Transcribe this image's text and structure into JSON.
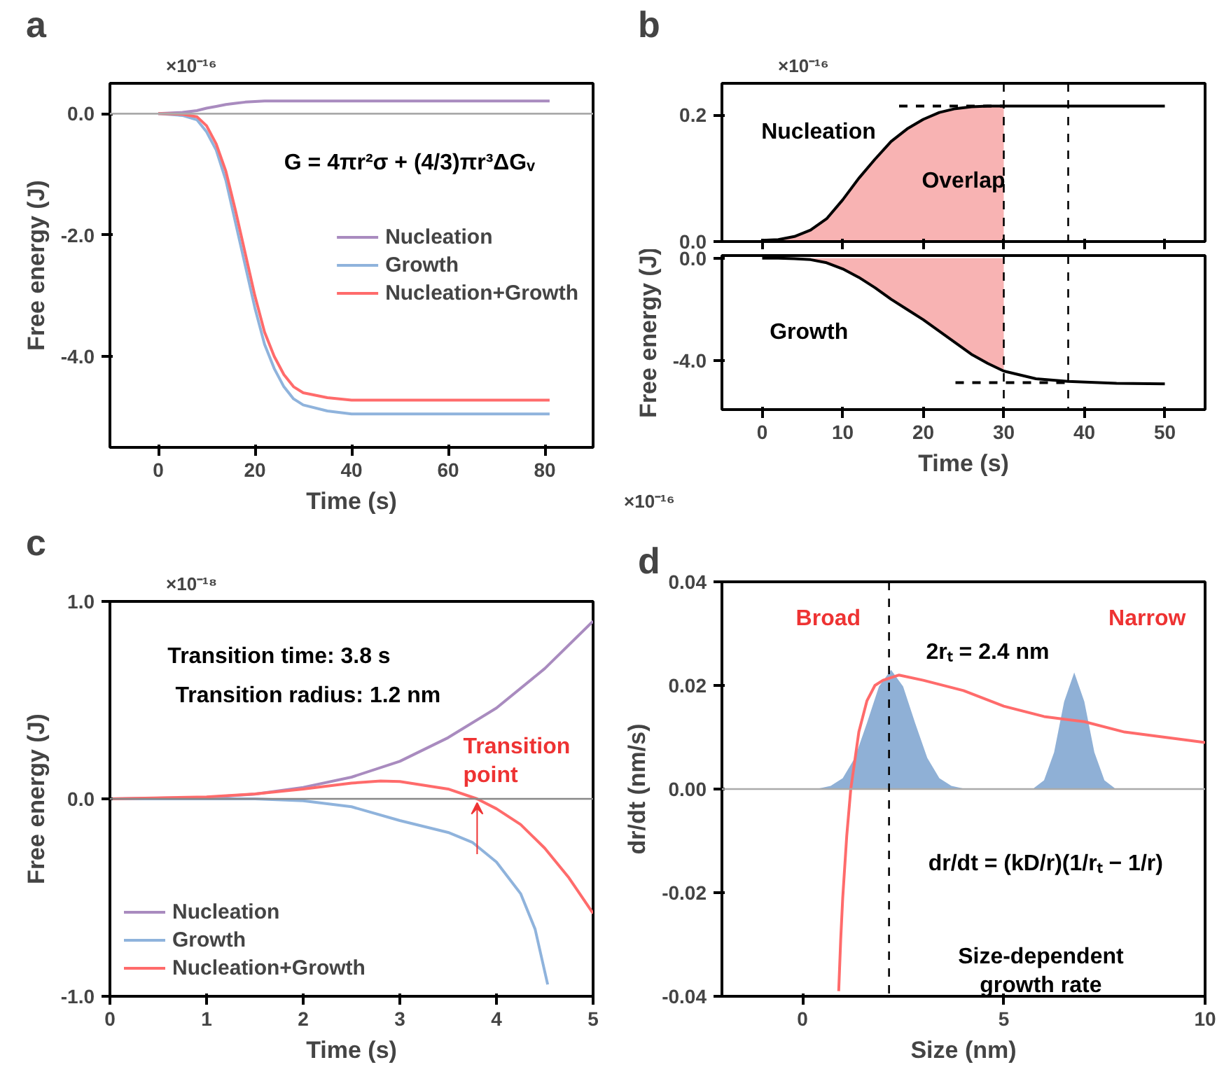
{
  "chart_data": [
    {
      "type": "line",
      "title": "a",
      "subtitle": "×10⁻¹⁶",
      "xlabel": "Time (s)",
      "ylabel": "Free energy (J)",
      "xlim": [
        -10,
        90
      ],
      "ylim": [
        -5.5,
        0.5
      ],
      "xticks": [
        0,
        20,
        40,
        60,
        80
      ],
      "yticks": [
        {
          "value": 0,
          "label": "0.0"
        },
        {
          "value": -2,
          "label": "-2.0"
        },
        {
          "value": -4,
          "label": "-4.0"
        }
      ],
      "legend": "right",
      "grid": false,
      "x": [
        0,
        5,
        8,
        10,
        12,
        14,
        16,
        18,
        20,
        22,
        24,
        26,
        28,
        30,
        35,
        40,
        50,
        81
      ],
      "series": [
        {
          "name": "Nucleation",
          "color": "#a98bbf",
          "values": [
            0,
            0.02,
            0.05,
            0.09,
            0.12,
            0.15,
            0.17,
            0.19,
            0.2,
            0.21,
            0.21,
            0.21,
            0.21,
            0.21,
            0.21,
            0.21,
            0.21,
            0.21
          ]
        },
        {
          "name": "Growth",
          "color": "#8fb3dc",
          "values": [
            0,
            -0.03,
            -0.1,
            -0.3,
            -0.6,
            -1.1,
            -1.8,
            -2.5,
            -3.2,
            -3.8,
            -4.2,
            -4.5,
            -4.7,
            -4.8,
            -4.9,
            -4.95,
            -4.95,
            -4.95
          ]
        },
        {
          "name": "Nucleation+Growth",
          "color": "#ff6b6b",
          "values": [
            0,
            -0.01,
            -0.05,
            -0.2,
            -0.5,
            -0.95,
            -1.6,
            -2.3,
            -3.0,
            -3.6,
            -4.0,
            -4.3,
            -4.5,
            -4.6,
            -4.68,
            -4.72,
            -4.72,
            -4.72
          ]
        }
      ],
      "ref_lines": [
        {
          "axis": "y",
          "value": 0,
          "color": "#aaaaaa"
        }
      ],
      "annotations": [
        "G = 4πr²σ + (4/3)πr³ΔGᵥ"
      ]
    },
    {
      "type": "line",
      "title": "b",
      "subtitle": "×10⁻¹⁶",
      "xlim": [
        -5,
        55
      ],
      "ylim": [
        0,
        0.25
      ],
      "xticks": [
        0,
        10,
        20,
        30,
        40,
        50
      ],
      "yticks": [
        {
          "value": 0,
          "label": "0.0"
        },
        0.2
      ],
      "tick_labels": "y",
      "grid": false,
      "series": [
        {
          "type": "area",
          "color": "#f8b3b3",
          "x": [
            0,
            2,
            4,
            6,
            8,
            10,
            12,
            14,
            16,
            18,
            20,
            22,
            24,
            26,
            28,
            30
          ],
          "values": [
            0.002,
            0.003,
            0.008,
            0.018,
            0.036,
            0.066,
            0.1,
            0.13,
            0.158,
            0.178,
            0.193,
            0.204,
            0.21,
            0.213,
            0.214,
            0.214
          ]
        },
        {
          "color": "#000000",
          "x": [
            0,
            2,
            4,
            6,
            8,
            10,
            12,
            14,
            16,
            18,
            20,
            22,
            24,
            26,
            28,
            30,
            40,
            50
          ],
          "values": [
            0.002,
            0.003,
            0.008,
            0.018,
            0.036,
            0.066,
            0.1,
            0.13,
            0.158,
            0.178,
            0.193,
            0.204,
            0.21,
            0.213,
            0.214,
            0.214,
            0.214,
            0.214
          ]
        },
        {
          "color": "#000000",
          "line_style": "dashed",
          "x": [
            17,
            30
          ],
          "values": [
            0.214,
            0.214
          ]
        }
      ],
      "ref_lines": [
        {
          "axis": "x",
          "value": 30,
          "color": "#000000",
          "line_style": "dashed"
        },
        {
          "axis": "x",
          "value": 38,
          "color": "#000000",
          "line_style": "dashed"
        }
      ],
      "annotations": [
        "Nucleation",
        "Overlap"
      ]
    },
    {
      "type": "line",
      "subtitle": "×10⁻¹⁶",
      "xlabel": "Time (s)",
      "ylabel": "Free energy (J)",
      "xlim": [
        -5,
        55
      ],
      "ylim": [
        -5.9,
        0.1
      ],
      "xticks": [
        0,
        10,
        20,
        30,
        40,
        50
      ],
      "yticks": [
        {
          "value": 0,
          "label": "0.0"
        },
        {
          "value": -4,
          "label": "-4.0"
        }
      ],
      "grid": false,
      "series": [
        {
          "type": "area",
          "color": "#f8b3b3",
          "x": [
            0,
            2,
            4,
            6,
            8,
            10,
            12,
            14,
            16,
            18,
            20,
            22,
            24,
            26,
            28,
            30
          ],
          "values": [
            0,
            0,
            -0.02,
            -0.06,
            -0.18,
            -0.42,
            -0.75,
            -1.15,
            -1.6,
            -2.0,
            -2.4,
            -2.85,
            -3.3,
            -3.75,
            -4.1,
            -4.4
          ]
        },
        {
          "color": "#000000",
          "x": [
            0,
            2,
            4,
            6,
            8,
            10,
            12,
            14,
            16,
            18,
            20,
            22,
            24,
            26,
            28,
            30,
            34,
            38,
            44,
            50
          ],
          "values": [
            0,
            0,
            -0.02,
            -0.06,
            -0.18,
            -0.42,
            -0.75,
            -1.15,
            -1.6,
            -2.0,
            -2.4,
            -2.85,
            -3.3,
            -3.75,
            -4.1,
            -4.4,
            -4.7,
            -4.8,
            -4.88,
            -4.9
          ]
        },
        {
          "color": "#000000",
          "line_style": "dashed",
          "x": [
            24,
            38
          ],
          "values": [
            -4.85,
            -4.85
          ]
        }
      ],
      "ref_lines": [
        {
          "axis": "x",
          "value": 30,
          "color": "#000000",
          "line_style": "dashed"
        },
        {
          "axis": "x",
          "value": 38,
          "color": "#000000",
          "line_style": "dashed"
        }
      ],
      "annotations": [
        "Growth"
      ]
    },
    {
      "type": "line",
      "title": "c",
      "subtitle": "×10⁻¹⁸",
      "xlabel": "Time (s)",
      "ylabel": "Free energy (J)",
      "xlim": [
        0,
        5
      ],
      "ylim": [
        -1,
        1
      ],
      "xticks": [
        0,
        1,
        2,
        3,
        4,
        5
      ],
      "yticks": [
        {
          "value": 1,
          "label": "1.0"
        },
        {
          "value": 0,
          "label": "0.0"
        },
        {
          "value": -1,
          "label": "-1.0"
        }
      ],
      "legend": "bottom left",
      "grid": false,
      "series": [
        {
          "name": "Nucleation",
          "color": "#a98bbf",
          "x": [
            0,
            1,
            1.5,
            2,
            2.5,
            3,
            3.5,
            4,
            4.5,
            5
          ],
          "values": [
            0,
            0.007,
            0.024,
            0.058,
            0.11,
            0.19,
            0.31,
            0.46,
            0.66,
            0.9
          ]
        },
        {
          "name": "Growth",
          "color": "#8fb3dc",
          "x": [
            0,
            1,
            1.5,
            2,
            2.5,
            3,
            3.5,
            3.75,
            4,
            4.25,
            4.4,
            4.53
          ],
          "values": [
            0,
            0,
            0,
            -0.01,
            -0.04,
            -0.11,
            -0.17,
            -0.22,
            -0.32,
            -0.48,
            -0.66,
            -0.94
          ]
        },
        {
          "name": "Nucleation+Growth",
          "color": "#ff6b6b",
          "x": [
            0,
            1,
            1.5,
            2,
            2.5,
            2.8,
            3,
            3.5,
            3.8,
            4,
            4.25,
            4.5,
            4.75,
            5
          ],
          "values": [
            0,
            0.01,
            0.025,
            0.05,
            0.08,
            0.09,
            0.088,
            0.05,
            0,
            -0.05,
            -0.13,
            -0.25,
            -0.4,
            -0.58
          ]
        }
      ],
      "ref_lines": [
        {
          "axis": "y",
          "value": 0,
          "color": "#888888"
        }
      ],
      "annotations": [
        "Transition time: 3.8 s",
        "Transition radius: 1.2 nm",
        {
          "text": "Transition\npoint",
          "x": 3.8,
          "y": 0
        }
      ]
    },
    {
      "type": "line",
      "title": "d",
      "xlabel": "Size (nm)",
      "ylabel": "dr/dt (nm/s)",
      "xlim": [
        -2,
        10
      ],
      "ylim": [
        -0.04,
        0.04
      ],
      "xticks": [
        0,
        5,
        10
      ],
      "yticks": [
        0.04,
        0.02,
        {
          "value": 0,
          "label": "0.00"
        },
        -0.02,
        -0.04
      ],
      "grid": false,
      "series": [
        {
          "type": "area",
          "color": "#8fb0d6",
          "x": [
            0.4,
            0.7,
            1.0,
            1.3,
            1.6,
            1.9,
            2.2,
            2.5,
            2.8,
            3.1,
            3.4,
            3.7,
            4.0
          ],
          "values": [
            0.0001,
            0.0006,
            0.0021,
            0.006,
            0.0127,
            0.0198,
            0.023,
            0.0198,
            0.0127,
            0.006,
            0.0021,
            0.0006,
            0.0001
          ]
        },
        {
          "type": "area",
          "color": "#8fb0d6",
          "x": [
            5.75,
            6.0,
            6.25,
            6.5,
            6.75,
            7.0,
            7.25,
            7.5,
            7.75
          ],
          "values": [
            0.0002,
            0.0017,
            0.0071,
            0.0169,
            0.0225,
            0.0169,
            0.0071,
            0.0017,
            0.0002
          ]
        },
        {
          "color": "#ff6b6b",
          "x": [
            0.9,
            0.95,
            1.0,
            1.1,
            1.2,
            1.4,
            1.6,
            1.8,
            2.0,
            2.4,
            3,
            4,
            5,
            6,
            7,
            8,
            9,
            10
          ],
          "values": [
            -0.039,
            -0.029,
            -0.021,
            -0.009,
            0,
            0.011,
            0.017,
            0.02,
            0.021,
            0.022,
            0.021,
            0.019,
            0.016,
            0.014,
            0.013,
            0.011,
            0.01,
            0.009
          ]
        }
      ],
      "ref_lines": [
        {
          "axis": "y",
          "value": 0,
          "color": "#aaaaaa"
        },
        {
          "axis": "x",
          "value": 2.15,
          "color": "#000000",
          "line_style": "dashed"
        }
      ],
      "annotations": [
        "Broad",
        "Narrow",
        "2rₜ = 2.4 nm",
        "dr/dt = (kD/r)(1/rₜ − 1/r)",
        "Size-dependent\ngrowth rate"
      ]
    }
  ]
}
